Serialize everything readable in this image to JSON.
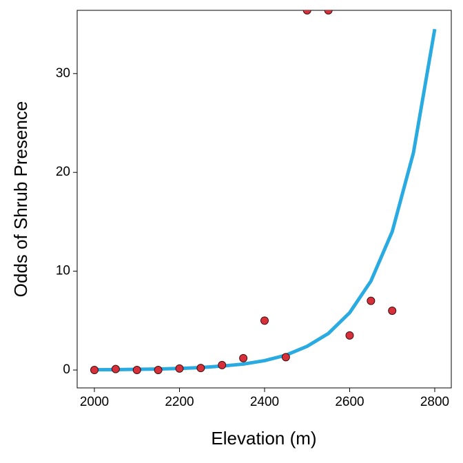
{
  "chart_data": {
    "type": "scatter",
    "x_label": "Elevation (m)",
    "y_label": "Odds of Shrub Presence",
    "xlim": [
      1959.5,
      2838.9
    ],
    "ylim": [
      -1.81,
      36.4
    ],
    "xticks": [
      2000,
      2200,
      2400,
      2600,
      2800
    ],
    "yticks": [
      0,
      10,
      20,
      30
    ],
    "series": [
      {
        "type": "scatter",
        "color": "#d7303a",
        "x": [
          2000,
          2050,
          2100,
          2150,
          2200,
          2250,
          2300,
          2350,
          2400,
          2450,
          2500,
          2550,
          2600,
          2650,
          2700
        ],
        "values": [
          0,
          0.1,
          0,
          0,
          0.15,
          0.2,
          0.5,
          1.2,
          5,
          1.3,
          36.4,
          36.4,
          3.5,
          7,
          6
        ]
      },
      {
        "type": "line",
        "color": "#29abe2",
        "x": [
          2000,
          2050,
          2100,
          2150,
          2200,
          2250,
          2300,
          2350,
          2400,
          2450,
          2500,
          2550,
          2600,
          2650,
          2700,
          2750,
          2800
        ],
        "values": [
          0.03,
          0.04,
          0.07,
          0.1,
          0.16,
          0.25,
          0.4,
          0.6,
          0.95,
          1.5,
          2.4,
          3.7,
          5.8,
          9,
          14,
          22,
          34.5
        ]
      }
    ]
  }
}
